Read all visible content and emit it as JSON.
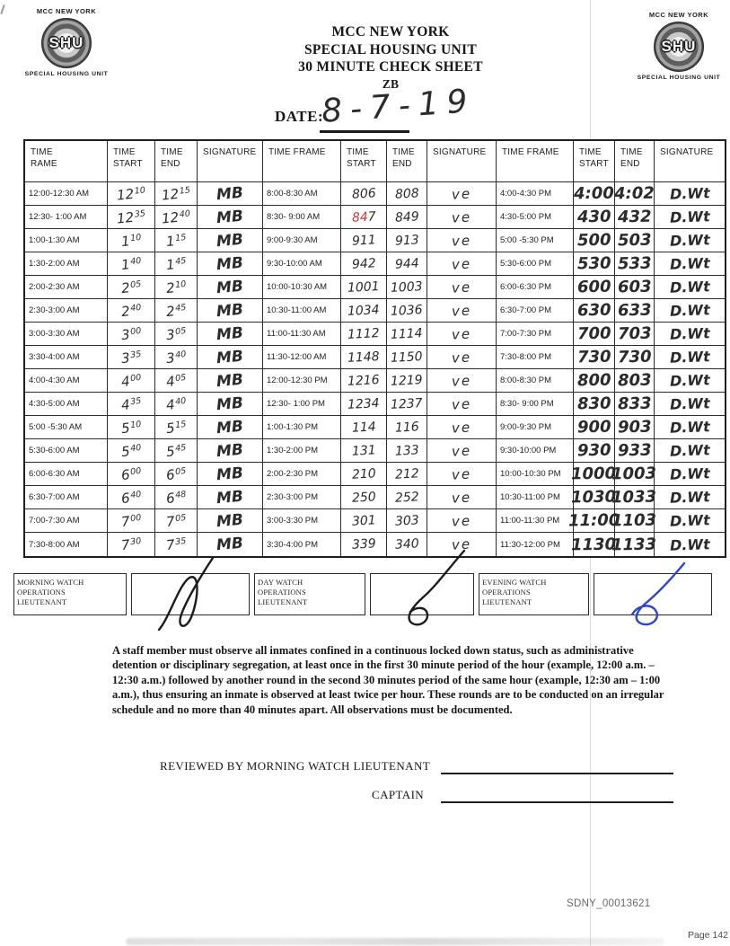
{
  "header": {
    "title_lines": [
      "MCC NEW YORK",
      "SPECIAL HOUSING UNIT",
      "30 MINUTE CHECK SHEET",
      "ZB"
    ],
    "date_label": "DATE:",
    "date_value": "8-7-19"
  },
  "logo": {
    "top": "MCC NEW YORK",
    "seal": "SHU",
    "bottom": "SPECIAL HOUSING UNIT"
  },
  "table": {
    "headers": [
      "TIME\nRAME",
      "TIME\nSTART",
      "TIME\nEND",
      "SIGNATURE",
      "TIME FRAME",
      "TIME\nSTART",
      "TIME\nEND",
      "SIGNATURE",
      "TIME FRAME",
      "TIME\nSTART",
      "TIME\nEND",
      "SIGNATURE"
    ],
    "groups": [
      {
        "id": "g1",
        "frames": [
          "12:00-12:30 AM",
          "12:30- 1:00 AM",
          "1:00-1:30 AM",
          "1:30-2:00 AM",
          "2:00-2:30 AM",
          "2:30-3:00 AM",
          "3:00-3:30 AM",
          "3:30-4:00 AM",
          "4:00-4:30 AM",
          "4:30-5:00 AM",
          "5:00 -5:30 AM",
          "5:30-6:00 AM",
          "6:00-6:30 AM",
          "6:30-7:00 AM",
          "7:00-7:30 AM",
          "7:30-8:00 AM"
        ],
        "starts": [
          "12^10",
          "12^35",
          "1^10",
          "1^40",
          "2^05",
          "2^40",
          "3^00",
          "3^35",
          "4^00",
          "4^35",
          "5^10",
          "5^40",
          "6^00",
          "6^40",
          "7^00",
          "7^30"
        ],
        "ends": [
          "12^15",
          "12^40",
          "1^15",
          "1^45",
          "2^10",
          "2^45",
          "3^05",
          "3^40",
          "4^05",
          "4^40",
          "5^15",
          "5^45",
          "6^05",
          "6^48",
          "7^05",
          "7^35"
        ],
        "sig": "MB"
      },
      {
        "id": "g2",
        "frames": [
          "8:00-8:30 AM",
          "8:30- 9:00 AM",
          "9:00-9:30 AM",
          "9:30-10:00 AM",
          "10:00-10:30 AM",
          "10:30-11:00 AM",
          "11:00-11:30 AM",
          "11:30-12:00 AM",
          "12:00-12:30 PM",
          "12:30- 1:00 PM",
          "1:00-1:30 PM",
          "1:30-2:00 PM",
          "2:00-2:30 PM",
          "2:30-3:00 PM",
          "3:00-3:30 PM",
          "3:30-4:00 PM"
        ],
        "starts": [
          "806",
          "847",
          "911",
          "942",
          "1001",
          "1034",
          "1112",
          "1148",
          "1216",
          "1234",
          "114",
          "131",
          "210",
          "250",
          "301",
          "339"
        ],
        "ends": [
          "808",
          "849",
          "913",
          "944",
          "1003",
          "1036",
          "1114",
          "1150",
          "1219",
          "1237",
          "116",
          "133",
          "212",
          "252",
          "303",
          "340"
        ],
        "sig": "ve",
        "red_mark": {
          "row_index": 1,
          "field": "start",
          "char_count": 2
        }
      },
      {
        "id": "g3",
        "frames": [
          "4:00-4:30 PM",
          "4:30-5:00 PM",
          "5:00 -5:30 PM",
          "5:30-6:00 PM",
          "6:00-6:30 PM",
          "6:30-7:00 PM",
          "7:00-7:30 PM",
          "7:30-8:00 PM",
          "8:00-8:30 PM",
          "8:30- 9:00 PM",
          "9:00-9:30 PM",
          "9:30-10:00 PM",
          "10:00-10:30 PM",
          "10:30-11:00 PM",
          "11:00-11:30 PM",
          "11:30-12:00 PM"
        ],
        "starts": [
          "4:00",
          "430",
          "500",
          "530",
          "600",
          "630",
          "700",
          "730",
          "800",
          "830",
          "900",
          "930",
          "1000",
          "1030",
          "11:00",
          "1130"
        ],
        "ends": [
          "4:02",
          "432",
          "503",
          "533",
          "603",
          "633",
          "703",
          "730",
          "803",
          "833",
          "903",
          "933",
          "1003",
          "1033",
          "1103",
          "1133"
        ],
        "sig": "D.Wt"
      }
    ]
  },
  "watch": {
    "sections": [
      {
        "label_lines": [
          "MORNING WATCH",
          "OPERATIONS",
          "LIEUTENANT"
        ],
        "sig_color": "#1c1c1c"
      },
      {
        "label_lines": [
          "DAY WATCH",
          "OPERATIONS",
          "LIEUTENANT"
        ],
        "sig_color": "#1c1c1c"
      },
      {
        "label_lines": [
          "EVENING WATCH",
          "OPERATIONS",
          "LIEUTENANT"
        ],
        "sig_color": "#2b46c8"
      }
    ]
  },
  "notice": "A staff member must observe all inmates confined in a continuous locked down status, such as administrative detention or disciplinary segregation, at least once in the first 30 minute period of the hour (example, 12:00 a.m. – 12:30 a.m.) followed by another round in the second 30 minutes period of the same hour (example, 12:30 am – 1:00 a.m.), thus ensuring an inmate is observed at least twice per hour. These rounds are to be conducted on an irregular schedule and no more than 40 minutes apart. All observations must be documented.",
  "footer": {
    "reviewed_label": "REVIEWED BY MORNING WATCH LIEUTENANT",
    "captain_label": "CAPTAIN",
    "bates": "SDNY_00013621",
    "page_label": "Page 142"
  },
  "colors": {
    "ink": "#2b2b2b",
    "red_ink": "#c23b33",
    "blue_ink": "#2b46c8"
  }
}
